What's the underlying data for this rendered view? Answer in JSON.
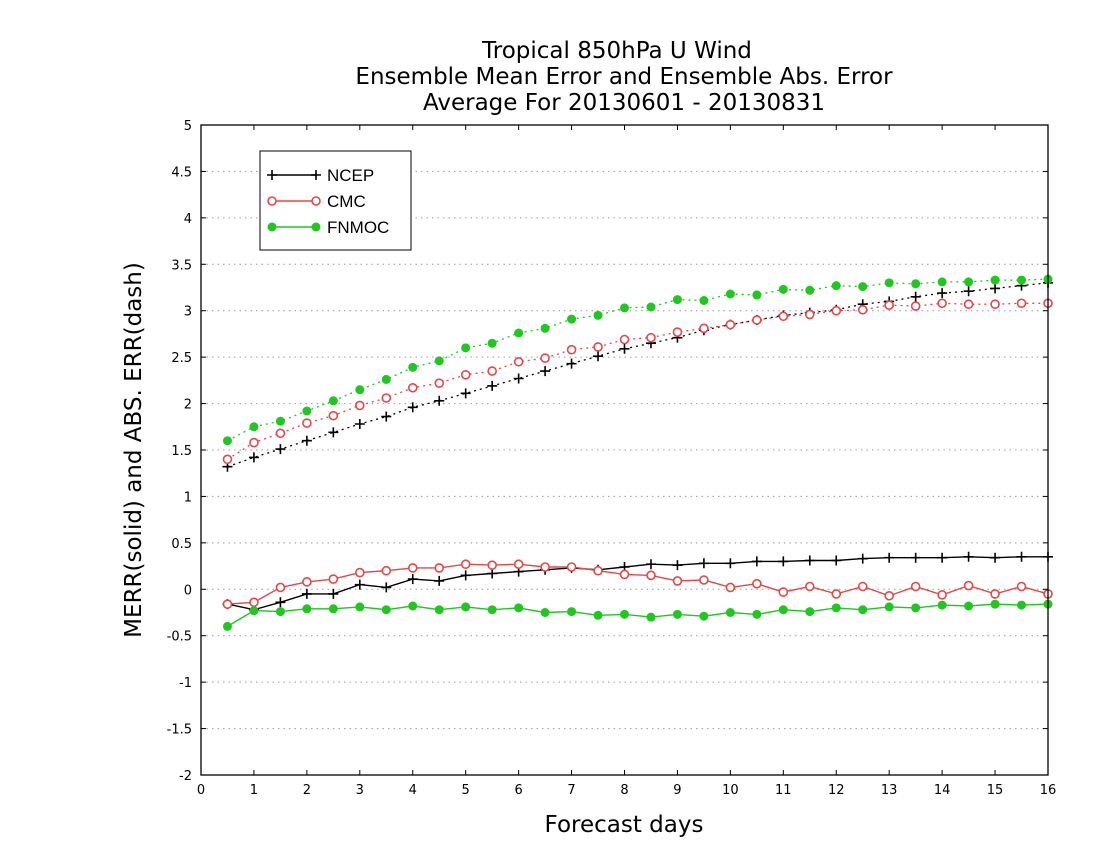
{
  "chart_data": {
    "type": "line",
    "title_lines": [
      "Tropical 850hPa U Wind",
      "Ensemble Mean Error and Ensemble Abs. Error",
      "Average For 20130601 - 20130831"
    ],
    "xlabel": "Forecast days",
    "ylabel": "MERR(solid) and ABS. ERR(dash)",
    "xlim": [
      0,
      16
    ],
    "ylim": [
      -2,
      5
    ],
    "xticks": [
      "0",
      "1",
      "2",
      "3",
      "4",
      "5",
      "6",
      "7",
      "8",
      "9",
      "10",
      "11",
      "12",
      "13",
      "14",
      "15",
      "16"
    ],
    "yticks": [
      "-2",
      "-1.5",
      "-1",
      "-0.5",
      "0",
      "0.5",
      "1",
      "1.5",
      "2",
      "2.5",
      "3",
      "3.5",
      "4",
      "4.5",
      "5"
    ],
    "grid": "horizontal dotted",
    "legend_position": "top-left",
    "x": [
      0.5,
      1,
      1.5,
      2,
      2.5,
      3,
      3.5,
      4,
      4.5,
      5,
      5.5,
      6,
      6.5,
      7,
      7.5,
      8,
      8.5,
      9,
      9.5,
      10,
      10.5,
      11,
      11.5,
      12,
      12.5,
      13,
      13.5,
      14,
      14.5,
      15,
      15.5,
      16
    ],
    "series": [
      {
        "name": "NCEP",
        "color": "#000000",
        "marker": "plus",
        "merr": [
          -0.16,
          -0.22,
          -0.14,
          -0.05,
          -0.05,
          0.05,
          0.02,
          0.11,
          0.09,
          0.15,
          0.17,
          0.19,
          0.21,
          0.23,
          0.21,
          0.24,
          0.27,
          0.26,
          0.28,
          0.28,
          0.3,
          0.3,
          0.31,
          0.31,
          0.33,
          0.34,
          0.34,
          0.34,
          0.35,
          0.34,
          0.35,
          0.35
        ],
        "abs_err": [
          1.32,
          1.42,
          1.51,
          1.6,
          1.69,
          1.78,
          1.86,
          1.96,
          2.03,
          2.11,
          2.19,
          2.27,
          2.35,
          2.43,
          2.51,
          2.59,
          2.65,
          2.71,
          2.79,
          2.85,
          2.9,
          2.95,
          2.98,
          3.01,
          3.07,
          3.1,
          3.15,
          3.19,
          3.21,
          3.24,
          3.27,
          3.3
        ]
      },
      {
        "name": "CMC",
        "color": "#e84545",
        "marker": "open-circle",
        "merr": [
          -0.16,
          -0.14,
          0.02,
          0.08,
          0.11,
          0.18,
          0.2,
          0.23,
          0.23,
          0.27,
          0.26,
          0.27,
          0.24,
          0.24,
          0.2,
          0.16,
          0.15,
          0.09,
          0.1,
          0.02,
          0.06,
          -0.03,
          0.03,
          -0.05,
          0.03,
          -0.07,
          0.03,
          -0.06,
          0.04,
          -0.05,
          0.03,
          -0.05
        ],
        "abs_err": [
          1.4,
          1.58,
          1.68,
          1.79,
          1.87,
          1.98,
          2.06,
          2.17,
          2.22,
          2.31,
          2.35,
          2.45,
          2.49,
          2.58,
          2.61,
          2.69,
          2.71,
          2.77,
          2.81,
          2.85,
          2.9,
          2.94,
          2.96,
          3.0,
          3.01,
          3.06,
          3.05,
          3.08,
          3.07,
          3.07,
          3.08,
          3.08
        ]
      },
      {
        "name": "FNMOC",
        "color": "#1ec81e",
        "marker": "filled-circle",
        "merr": [
          -0.4,
          -0.23,
          -0.24,
          -0.21,
          -0.21,
          -0.19,
          -0.22,
          -0.18,
          -0.22,
          -0.19,
          -0.22,
          -0.2,
          -0.25,
          -0.24,
          -0.28,
          -0.27,
          -0.3,
          -0.27,
          -0.29,
          -0.25,
          -0.27,
          -0.22,
          -0.24,
          -0.2,
          -0.22,
          -0.19,
          -0.2,
          -0.17,
          -0.18,
          -0.16,
          -0.17,
          -0.16
        ],
        "abs_err": [
          1.6,
          1.75,
          1.81,
          1.92,
          2.03,
          2.15,
          2.26,
          2.39,
          2.46,
          2.6,
          2.65,
          2.76,
          2.81,
          2.91,
          2.95,
          3.03,
          3.04,
          3.12,
          3.11,
          3.18,
          3.17,
          3.23,
          3.22,
          3.27,
          3.26,
          3.3,
          3.29,
          3.31,
          3.31,
          3.33,
          3.33,
          3.34
        ]
      }
    ]
  }
}
